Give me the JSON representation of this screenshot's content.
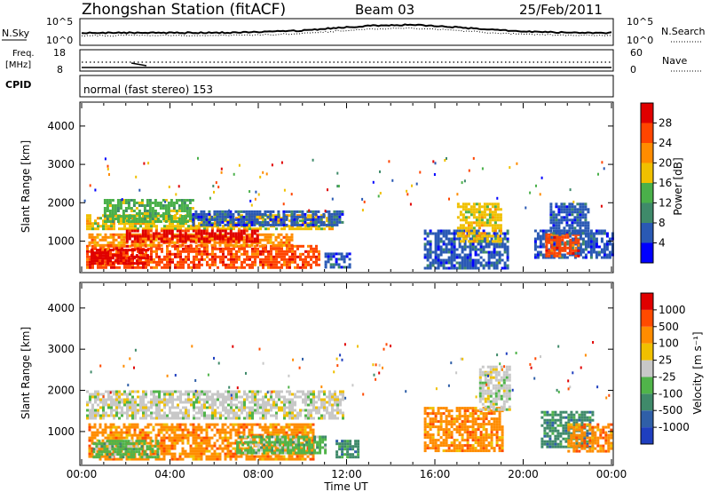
{
  "header": {
    "station": "Zhongshan Station (fitACF)",
    "beam": "Beam 03",
    "date": "25/Feb/2011"
  },
  "strips": {
    "nsky_label": "N.Sky",
    "nsky_ticks": [
      "10^5",
      "10^0"
    ],
    "nsearch_label": "N.Search",
    "nsearch_ticks": [
      "10^5",
      "10^0"
    ],
    "freq_label_1": "Freq.",
    "freq_label_2": "[MHz]",
    "freq_ticks": [
      "18",
      "8"
    ],
    "nave_label": "Nave",
    "nave_ticks": [
      "60",
      "0"
    ],
    "cpid_label": "CPID",
    "cpid_text": "normal (fast stereo) 153"
  },
  "time_axis": {
    "label": "Time UT",
    "ticks": [
      "00:00",
      "04:00",
      "08:00",
      "12:00",
      "16:00",
      "20:00",
      "00:00"
    ]
  },
  "colors": {
    "power": [
      "#0000ff",
      "#2a59b4",
      "#3f8a6a",
      "#4ab04a",
      "#f0c000",
      "#ff8c00",
      "#ff4500",
      "#e00000"
    ],
    "velocity": [
      "#1f3fbf",
      "#2f5fa8",
      "#3f8a6a",
      "#50b44a",
      "#c8c8c8",
      "#f0c000",
      "#ff8c00",
      "#ff4a00",
      "#e00000"
    ]
  },
  "chart_data": [
    {
      "type": "heatmap",
      "panel": "power",
      "ylabel": "Slant Range [km]",
      "xlabel": "",
      "y_ticks": [
        "1000",
        "2000",
        "3000",
        "4000"
      ],
      "ylim": [
        200,
        4600
      ],
      "xlim_hours": [
        0,
        24
      ],
      "colorbar_label": "Power [dB]",
      "colorbar_ticks": [
        "4",
        "8",
        "12",
        "16",
        "20",
        "24",
        "28"
      ],
      "regions": [
        {
          "t0": 0.2,
          "t1": 10.7,
          "r0": 300,
          "r1": 900,
          "level": 6
        },
        {
          "t0": 0.3,
          "t1": 9.5,
          "r0": 900,
          "r1": 1200,
          "level": 5
        },
        {
          "t0": 0.2,
          "t1": 11.5,
          "r0": 1300,
          "r1": 1700,
          "level": 4
        },
        {
          "t0": 1.0,
          "t1": 5.0,
          "r0": 1500,
          "r1": 2100,
          "level": 3
        },
        {
          "t0": 5.0,
          "t1": 11.8,
          "r0": 1400,
          "r1": 1800,
          "level": 1
        },
        {
          "t0": 2.0,
          "t1": 8.0,
          "r0": 1000,
          "r1": 1300,
          "level": 7
        },
        {
          "t0": 0.4,
          "t1": 3.0,
          "r0": 400,
          "r1": 800,
          "level": 7
        },
        {
          "t0": 11.0,
          "t1": 12.2,
          "r0": 300,
          "r1": 700,
          "level": 1
        },
        {
          "t0": 15.5,
          "t1": 19.3,
          "r0": 300,
          "r1": 1300,
          "level": 1
        },
        {
          "t0": 17.0,
          "t1": 19.0,
          "r0": 1000,
          "r1": 2000,
          "level": 4
        },
        {
          "t0": 20.5,
          "t1": 24.0,
          "r0": 600,
          "r1": 1300,
          "level": 1
        },
        {
          "t0": 21.0,
          "t1": 22.5,
          "r0": 600,
          "r1": 1200,
          "level": 6
        },
        {
          "t0": 21.2,
          "t1": 23.0,
          "r0": 1200,
          "r1": 2000,
          "level": 1
        }
      ]
    },
    {
      "type": "heatmap",
      "panel": "velocity",
      "ylabel": "Slant Range [km]",
      "xlabel": "Time UT",
      "y_ticks": [
        "1000",
        "2000",
        "3000",
        "4000"
      ],
      "ylim": [
        200,
        4600
      ],
      "xlim_hours": [
        0,
        24
      ],
      "colorbar_label": "Velocity [m s⁻¹]",
      "colorbar_ticks": [
        "1000",
        "500",
        "100",
        "25",
        "-25",
        "-100",
        "-500",
        "-1000"
      ],
      "regions": [
        {
          "t0": 0.2,
          "t1": 11.8,
          "r0": 1300,
          "r1": 2000,
          "level": 4
        },
        {
          "t0": 0.3,
          "t1": 10.5,
          "r0": 300,
          "r1": 1200,
          "level": 6
        },
        {
          "t0": 0.5,
          "t1": 3.5,
          "r0": 400,
          "r1": 800,
          "level": 3
        },
        {
          "t0": 7.0,
          "t1": 11.0,
          "r0": 500,
          "r1": 900,
          "level": 3
        },
        {
          "t0": 11.5,
          "t1": 12.5,
          "r0": 400,
          "r1": 800,
          "level": 2
        },
        {
          "t0": 15.5,
          "t1": 19.0,
          "r0": 500,
          "r1": 1600,
          "level": 6
        },
        {
          "t0": 18.0,
          "t1": 19.4,
          "r0": 1500,
          "r1": 2600,
          "level": 4
        },
        {
          "t0": 20.8,
          "t1": 23.2,
          "r0": 600,
          "r1": 1500,
          "level": 2
        },
        {
          "t0": 22.0,
          "t1": 24.0,
          "r0": 500,
          "r1": 1200,
          "level": 6
        }
      ]
    }
  ]
}
